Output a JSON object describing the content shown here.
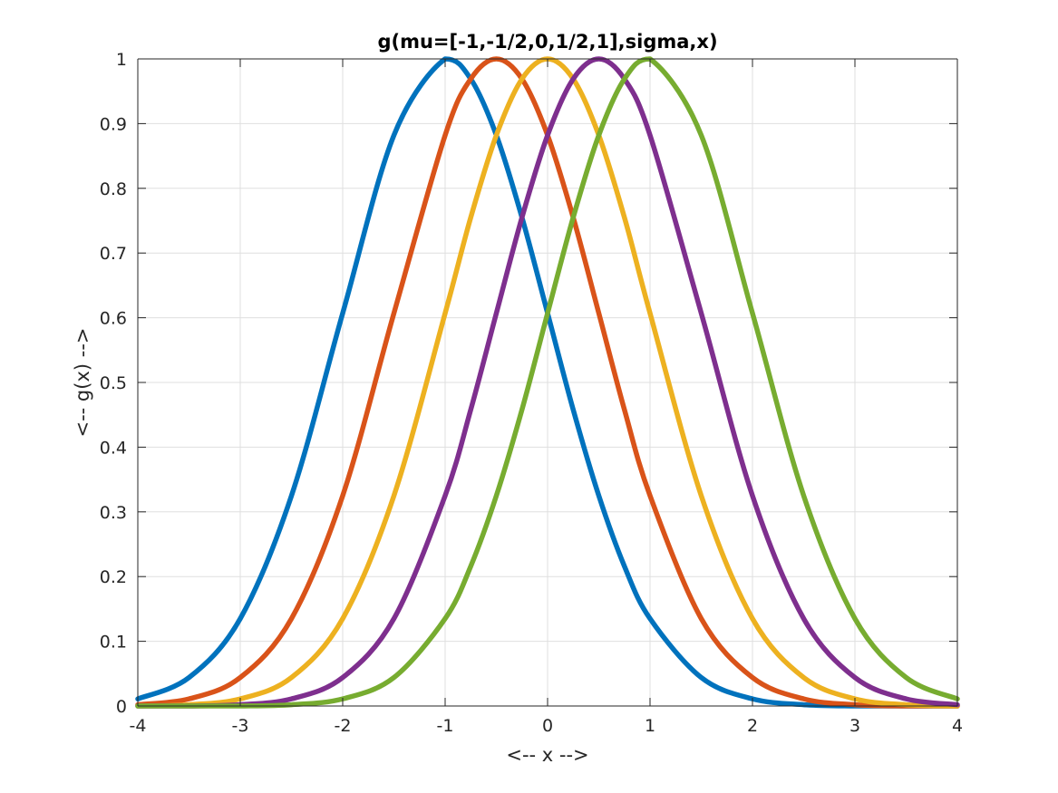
{
  "chart_data": {
    "type": "line",
    "title": "g(mu=[-1,-1/2,0,1/2,1],sigma,x)",
    "xlabel": "<-- x -->",
    "ylabel": "<-- g(x) -->",
    "xlim": [
      -4,
      4
    ],
    "ylim": [
      0,
      1
    ],
    "grid": true,
    "x_ticks": [
      "-4",
      "-3",
      "-2",
      "-1",
      "0",
      "1",
      "2",
      "3",
      "4"
    ],
    "y_ticks": [
      "0",
      "0.1",
      "0.2",
      "0.3",
      "0.4",
      "0.5",
      "0.6",
      "0.7",
      "0.8",
      "0.9",
      "1"
    ],
    "x": [
      -4,
      -3.5,
      -3,
      -2.5,
      -2,
      -1.5,
      -1,
      -0.75,
      -0.5,
      -0.25,
      0,
      0.25,
      0.5,
      0.75,
      1,
      1.5,
      2,
      2.5,
      3,
      3.5,
      4
    ],
    "series": [
      {
        "color": "#0072BD",
        "values": [
          0.011,
          0.044,
          0.135,
          0.325,
          0.607,
          0.882,
          1.0,
          0.969,
          0.882,
          0.755,
          0.607,
          0.458,
          0.325,
          0.216,
          0.135,
          0.044,
          0.011,
          0.002,
          0.0,
          0.0,
          0.0
        ]
      },
      {
        "color": "#D95319",
        "values": [
          0.002,
          0.011,
          0.044,
          0.135,
          0.325,
          0.607,
          0.882,
          0.969,
          1.0,
          0.969,
          0.882,
          0.755,
          0.607,
          0.458,
          0.325,
          0.135,
          0.044,
          0.011,
          0.002,
          0.0,
          0.0
        ]
      },
      {
        "color": "#EDB120",
        "values": [
          0.0,
          0.002,
          0.011,
          0.044,
          0.135,
          0.325,
          0.607,
          0.755,
          0.882,
          0.969,
          1.0,
          0.969,
          0.882,
          0.755,
          0.607,
          0.325,
          0.135,
          0.044,
          0.011,
          0.002,
          0.0
        ]
      },
      {
        "color": "#7E2F8E",
        "values": [
          0.0,
          0.0,
          0.002,
          0.011,
          0.044,
          0.135,
          0.325,
          0.458,
          0.607,
          0.755,
          0.882,
          0.969,
          1.0,
          0.969,
          0.882,
          0.607,
          0.325,
          0.135,
          0.044,
          0.011,
          0.002
        ]
      },
      {
        "color": "#77AC30",
        "values": [
          0.0,
          0.0,
          0.0,
          0.002,
          0.011,
          0.044,
          0.135,
          0.216,
          0.325,
          0.458,
          0.607,
          0.755,
          0.882,
          0.969,
          1.0,
          0.882,
          0.607,
          0.325,
          0.135,
          0.044,
          0.011
        ]
      }
    ]
  }
}
